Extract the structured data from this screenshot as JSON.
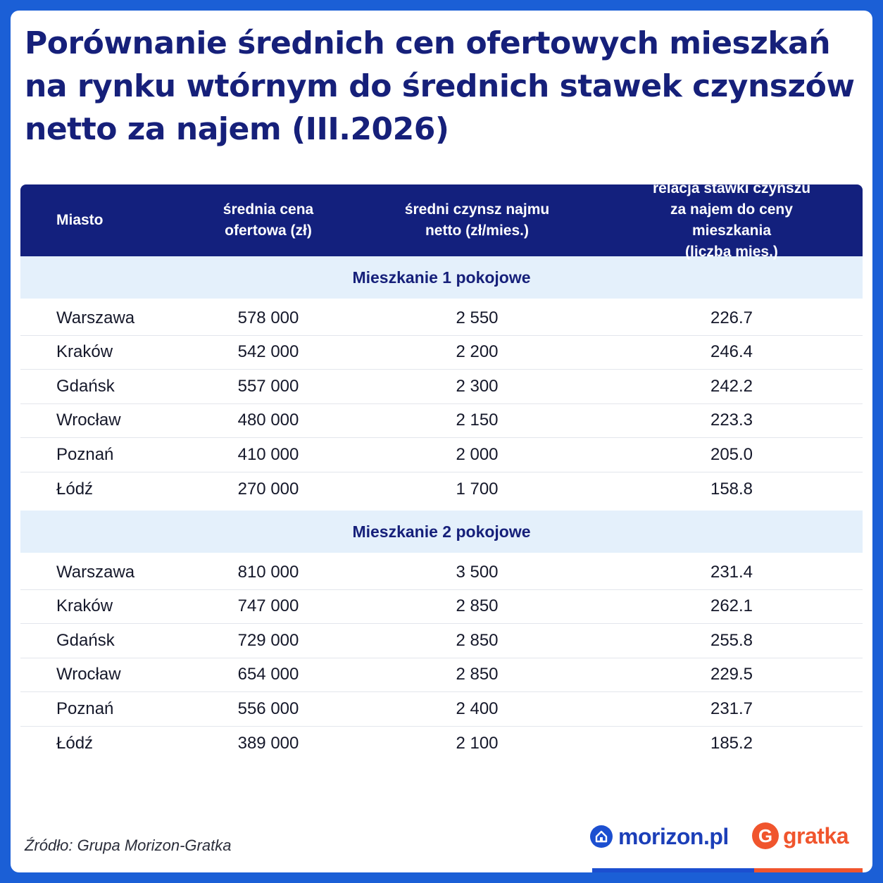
{
  "title": "Porównanie  średnich cen ofertowych mieszkań na rynku wtórnym do średnich stawek czynszów netto za najem (III.2026)",
  "table": {
    "headers": {
      "city": "Miasto",
      "price_line1": "średnia cena",
      "price_line2": "ofertowa (zł)",
      "rent_line1": "średni czynsz najmu",
      "rent_line2": "netto (zł/mies.)",
      "ratio_line1": "relacja stawki czynszu",
      "ratio_line2": "za najem do ceny mieszkania",
      "ratio_line3": "(liczba mies.)"
    },
    "sections": [
      {
        "label": "Mieszkanie 1 pokojowe",
        "rows": [
          {
            "city": "Warszawa",
            "price": "578 000",
            "rent": "2 550",
            "ratio": "226.7"
          },
          {
            "city": "Kraków",
            "price": "542 000",
            "rent": "2 200",
            "ratio": "246.4"
          },
          {
            "city": "Gdańsk",
            "price": "557 000",
            "rent": "2 300",
            "ratio": "242.2"
          },
          {
            "city": "Wrocław",
            "price": "480 000",
            "rent": "2 150",
            "ratio": "223.3"
          },
          {
            "city": "Poznań",
            "price": "410 000",
            "rent": "2 000",
            "ratio": "205.0"
          },
          {
            "city": "Łódź",
            "price": "270 000",
            "rent": "1 700",
            "ratio": "158.8"
          }
        ]
      },
      {
        "label": "Mieszkanie 2 pokojowe",
        "rows": [
          {
            "city": "Warszawa",
            "price": "810 000",
            "rent": "3 500",
            "ratio": "231.4"
          },
          {
            "city": "Kraków",
            "price": "747 000",
            "rent": "2 850",
            "ratio": "262.1"
          },
          {
            "city": "Gdańsk",
            "price": "729 000",
            "rent": "2 850",
            "ratio": "255.8"
          },
          {
            "city": "Wrocław",
            "price": "654 000",
            "rent": "2 850",
            "ratio": "229.5"
          },
          {
            "city": "Poznań",
            "price": "556 000",
            "rent": "2 400",
            "ratio": "231.7"
          },
          {
            "city": "Łódź",
            "price": "389 000",
            "rent": "2 100",
            "ratio": "185.2"
          }
        ]
      }
    ]
  },
  "footer": {
    "source": "Źródło: Grupa Morizon-Gratka",
    "logo_morizon": "morizon.pl",
    "logo_gratka": "gratka",
    "logo_gratka_icon": "G"
  },
  "colors": {
    "frame": "#1b5fd6",
    "header_bg": "#13207d",
    "title": "#16207a",
    "section_bg": "#e4f0fb",
    "morizon": "#1c4fd0",
    "gratka": "#f0552d"
  }
}
